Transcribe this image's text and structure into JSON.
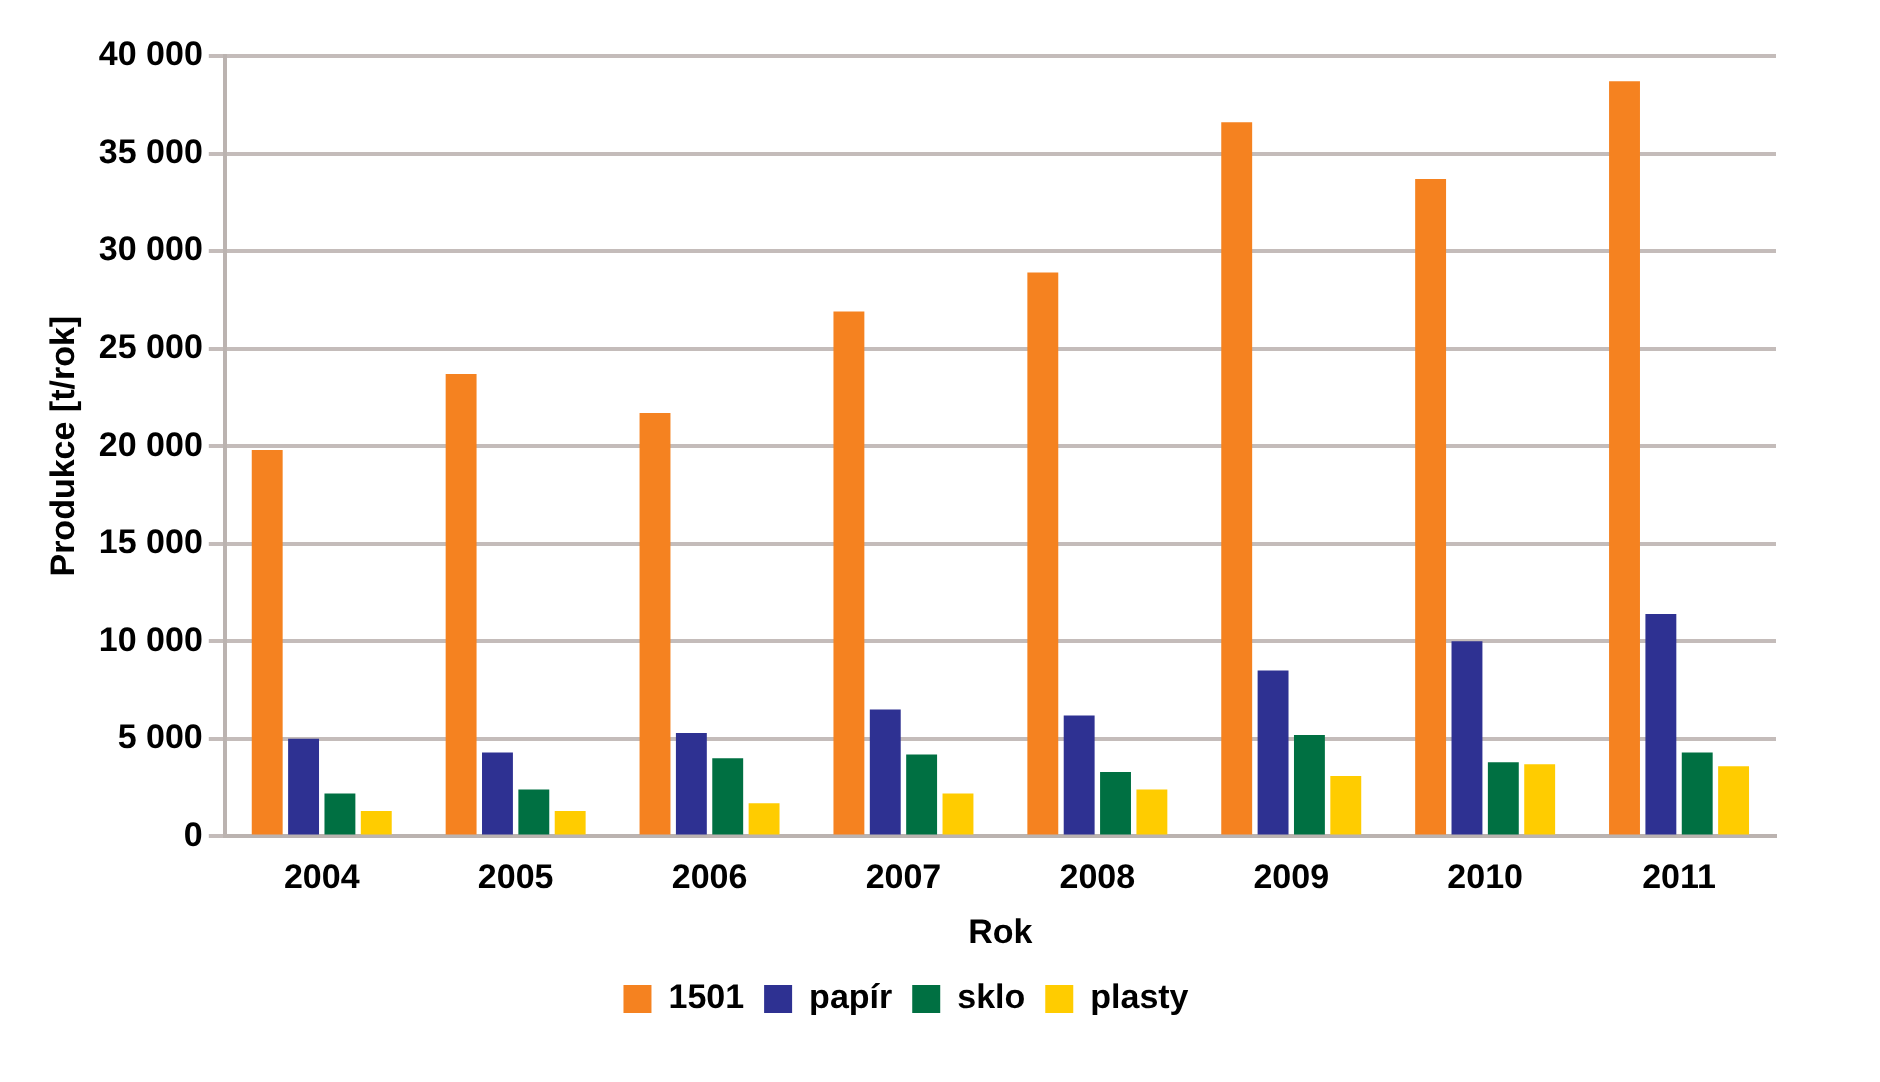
{
  "chart_data": {
    "type": "bar",
    "xlabel": "Rok",
    "ylabel": "Produkce [t/rok]",
    "categories": [
      "2004",
      "2005",
      "2006",
      "2007",
      "2008",
      "2009",
      "2010",
      "2011"
    ],
    "series": [
      {
        "name": "1501",
        "color": "#f58220",
        "values": [
          19800,
          23700,
          21700,
          26900,
          28900,
          36600,
          33700,
          38700
        ]
      },
      {
        "name": "papír",
        "color": "#2e3192",
        "values": [
          5000,
          4300,
          5300,
          6500,
          6200,
          8500,
          10000,
          11400
        ]
      },
      {
        "name": "sklo",
        "color": "#007042",
        "values": [
          2200,
          2400,
          4000,
          4200,
          3300,
          5200,
          3800,
          4300
        ]
      },
      {
        "name": "plasty",
        "color": "#ffcc00",
        "values": [
          1300,
          1300,
          1700,
          2200,
          2400,
          3100,
          3700,
          3600
        ]
      }
    ],
    "ylim": [
      0,
      40000
    ],
    "yticks": [
      0,
      {
        "value": 5000,
        "label": "5 000"
      },
      {
        "value": 10000,
        "label": "10 000"
      },
      {
        "value": 15000,
        "label": "15 000"
      },
      {
        "value": 20000,
        "label": "20 000"
      },
      {
        "value": 25000,
        "label": "25 000"
      },
      {
        "value": 30000,
        "label": "30 000"
      },
      {
        "value": 35000,
        "label": "35 000"
      },
      {
        "value": 40000,
        "label": "40 000"
      }
    ],
    "grid": "y",
    "legend": "bottom"
  }
}
